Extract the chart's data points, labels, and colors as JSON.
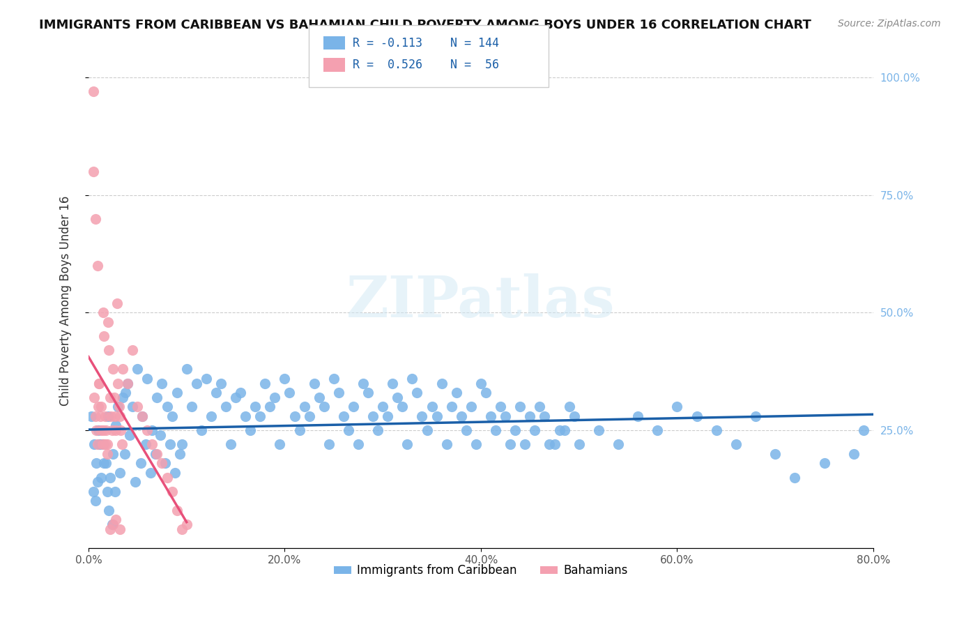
{
  "title": "IMMIGRANTS FROM CARIBBEAN VS BAHAMIAN CHILD POVERTY AMONG BOYS UNDER 16 CORRELATION CHART",
  "source": "Source: ZipAtlas.com",
  "xlabel_bottom": "",
  "ylabel": "Child Poverty Among Boys Under 16",
  "x_tick_labels": [
    "0.0%",
    "20.0%",
    "40.0%",
    "60.0%",
    "80.0%"
  ],
  "x_tick_values": [
    0.0,
    0.2,
    0.4,
    0.6,
    0.8
  ],
  "y_tick_labels_right": [
    "100.0%",
    "75.0%",
    "50.0%",
    "25.0%"
  ],
  "y_tick_values": [
    1.0,
    0.75,
    0.5,
    0.25
  ],
  "xlim": [
    0.0,
    0.8
  ],
  "ylim": [
    0.0,
    1.05
  ],
  "legend_label_blue": "Immigrants from Caribbean",
  "legend_label_pink": "Bahamians",
  "R_blue": -0.113,
  "N_blue": 144,
  "R_pink": 0.526,
  "N_pink": 56,
  "blue_color": "#7ab4e8",
  "pink_color": "#f4a0b0",
  "blue_line_color": "#1a5fa8",
  "pink_line_color": "#e8507a",
  "watermark": "ZIPatlas",
  "background_color": "#ffffff",
  "blue_scatter_x": [
    0.01,
    0.015,
    0.02,
    0.025,
    0.018,
    0.03,
    0.04,
    0.022,
    0.012,
    0.008,
    0.005,
    0.035,
    0.05,
    0.045,
    0.028,
    0.038,
    0.06,
    0.055,
    0.07,
    0.065,
    0.08,
    0.075,
    0.09,
    0.085,
    0.1,
    0.095,
    0.11,
    0.105,
    0.12,
    0.115,
    0.13,
    0.125,
    0.14,
    0.135,
    0.15,
    0.145,
    0.16,
    0.155,
    0.17,
    0.165,
    0.18,
    0.175,
    0.19,
    0.185,
    0.2,
    0.195,
    0.21,
    0.205,
    0.22,
    0.215,
    0.23,
    0.225,
    0.24,
    0.235,
    0.25,
    0.245,
    0.26,
    0.255,
    0.27,
    0.265,
    0.28,
    0.275,
    0.29,
    0.285,
    0.3,
    0.295,
    0.31,
    0.305,
    0.32,
    0.315,
    0.33,
    0.325,
    0.34,
    0.335,
    0.35,
    0.345,
    0.36,
    0.355,
    0.37,
    0.365,
    0.38,
    0.375,
    0.39,
    0.385,
    0.4,
    0.395,
    0.41,
    0.405,
    0.42,
    0.415,
    0.43,
    0.425,
    0.44,
    0.435,
    0.45,
    0.445,
    0.46,
    0.455,
    0.47,
    0.465,
    0.48,
    0.475,
    0.49,
    0.485,
    0.5,
    0.495,
    0.52,
    0.54,
    0.56,
    0.58,
    0.6,
    0.62,
    0.64,
    0.66,
    0.68,
    0.7,
    0.72,
    0.75,
    0.78,
    0.79,
    0.003,
    0.006,
    0.009,
    0.007,
    0.011,
    0.013,
    0.016,
    0.019,
    0.021,
    0.024,
    0.027,
    0.032,
    0.037,
    0.042,
    0.048,
    0.053,
    0.058,
    0.063,
    0.068,
    0.073,
    0.078,
    0.083,
    0.088,
    0.093
  ],
  "blue_scatter_y": [
    0.25,
    0.22,
    0.28,
    0.2,
    0.18,
    0.3,
    0.35,
    0.15,
    0.22,
    0.18,
    0.12,
    0.32,
    0.38,
    0.3,
    0.26,
    0.33,
    0.36,
    0.28,
    0.32,
    0.25,
    0.3,
    0.35,
    0.33,
    0.28,
    0.38,
    0.22,
    0.35,
    0.3,
    0.36,
    0.25,
    0.33,
    0.28,
    0.3,
    0.35,
    0.32,
    0.22,
    0.28,
    0.33,
    0.3,
    0.25,
    0.35,
    0.28,
    0.32,
    0.3,
    0.36,
    0.22,
    0.28,
    0.33,
    0.3,
    0.25,
    0.35,
    0.28,
    0.3,
    0.32,
    0.36,
    0.22,
    0.28,
    0.33,
    0.3,
    0.25,
    0.35,
    0.22,
    0.28,
    0.33,
    0.3,
    0.25,
    0.35,
    0.28,
    0.3,
    0.32,
    0.36,
    0.22,
    0.28,
    0.33,
    0.3,
    0.25,
    0.35,
    0.28,
    0.3,
    0.22,
    0.28,
    0.33,
    0.3,
    0.25,
    0.35,
    0.22,
    0.28,
    0.33,
    0.3,
    0.25,
    0.22,
    0.28,
    0.3,
    0.25,
    0.28,
    0.22,
    0.3,
    0.25,
    0.22,
    0.28,
    0.25,
    0.22,
    0.3,
    0.25,
    0.22,
    0.28,
    0.25,
    0.22,
    0.28,
    0.25,
    0.3,
    0.28,
    0.25,
    0.22,
    0.28,
    0.2,
    0.15,
    0.18,
    0.2,
    0.25,
    0.28,
    0.22,
    0.14,
    0.1,
    0.22,
    0.15,
    0.18,
    0.12,
    0.08,
    0.05,
    0.12,
    0.16,
    0.2,
    0.24,
    0.14,
    0.18,
    0.22,
    0.16,
    0.2,
    0.24,
    0.18,
    0.22,
    0.16,
    0.2
  ],
  "pink_scatter_x": [
    0.005,
    0.006,
    0.007,
    0.008,
    0.009,
    0.01,
    0.011,
    0.012,
    0.013,
    0.014,
    0.015,
    0.016,
    0.017,
    0.018,
    0.019,
    0.02,
    0.021,
    0.022,
    0.023,
    0.024,
    0.025,
    0.026,
    0.027,
    0.028,
    0.029,
    0.03,
    0.031,
    0.032,
    0.033,
    0.034,
    0.035,
    0.04,
    0.045,
    0.05,
    0.055,
    0.06,
    0.065,
    0.07,
    0.075,
    0.08,
    0.085,
    0.09,
    0.095,
    0.1,
    0.005,
    0.007,
    0.009,
    0.011,
    0.013,
    0.015,
    0.017,
    0.019,
    0.022,
    0.025,
    0.028,
    0.032
  ],
  "pink_scatter_y": [
    0.97,
    0.32,
    0.28,
    0.25,
    0.22,
    0.3,
    0.35,
    0.28,
    0.25,
    0.22,
    0.5,
    0.45,
    0.28,
    0.25,
    0.22,
    0.48,
    0.42,
    0.32,
    0.28,
    0.25,
    0.38,
    0.32,
    0.28,
    0.25,
    0.52,
    0.35,
    0.3,
    0.28,
    0.25,
    0.22,
    0.38,
    0.35,
    0.42,
    0.3,
    0.28,
    0.25,
    0.22,
    0.2,
    0.18,
    0.15,
    0.12,
    0.08,
    0.04,
    0.05,
    0.8,
    0.7,
    0.6,
    0.35,
    0.3,
    0.25,
    0.22,
    0.2,
    0.04,
    0.05,
    0.06,
    0.04
  ]
}
